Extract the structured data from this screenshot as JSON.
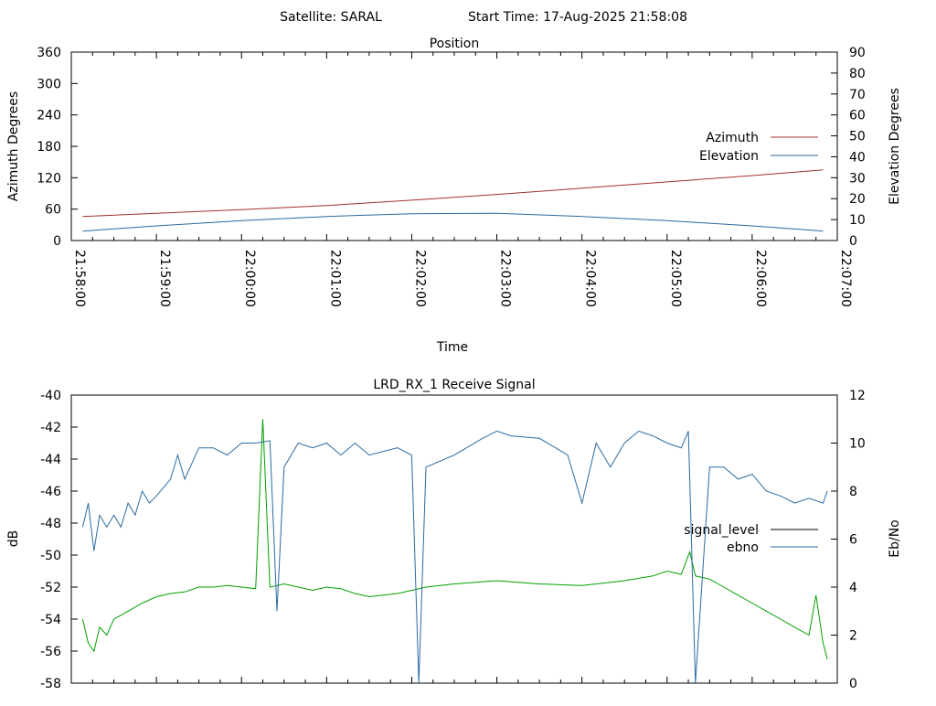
{
  "header": {
    "satellite": "Satellite: SARAL",
    "start_time": "Start Time: 17-Aug-2025 21:58:08"
  },
  "chart_data": [
    {
      "type": "line",
      "title": "Position",
      "xlabel": "Time",
      "ylabel": "Azimuth Degrees",
      "y2label": "Elevation Degrees",
      "x_ticks": [
        "21:58:00",
        "21:59:00",
        "22:00:00",
        "22:01:00",
        "22:02:00",
        "22:03:00",
        "22:04:00",
        "22:05:00",
        "22:06:00",
        "22:07:00"
      ],
      "xlim_seconds": [
        0,
        540
      ],
      "ylim": [
        0,
        360
      ],
      "y2lim": [
        0,
        90
      ],
      "y_ticks": [
        "0",
        "60",
        "120",
        "180",
        "240",
        "300",
        "360"
      ],
      "y2_ticks": [
        "0",
        "10",
        "20",
        "30",
        "40",
        "50",
        "60",
        "70",
        "80",
        "90"
      ],
      "legend": "right",
      "series": [
        {
          "name": "Azimuth",
          "axis": "y",
          "color": "#a0302c",
          "x": [
            8,
            60,
            120,
            180,
            240,
            300,
            360,
            420,
            480,
            530
          ],
          "y": [
            46,
            52,
            59,
            67,
            77,
            88,
            100,
            112,
            124,
            135
          ]
        },
        {
          "name": "Elevation",
          "axis": "y2",
          "color": "#2c6aa0",
          "x": [
            8,
            60,
            120,
            180,
            240,
            300,
            360,
            420,
            480,
            530
          ],
          "y": [
            4.5,
            7.0,
            9.5,
            11.5,
            12.8,
            13.0,
            11.5,
            9.5,
            7.0,
            4.5
          ]
        }
      ]
    },
    {
      "type": "line",
      "title": "LRD_RX_1 Receive Signal",
      "ylabel": "dB",
      "y2label": "Eb/No",
      "xlim_seconds": [
        0,
        540
      ],
      "ylim": [
        -58,
        -40
      ],
      "y2lim": [
        0,
        12
      ],
      "y_ticks": [
        "-40",
        "-42",
        "-44",
        "-46",
        "-48",
        "-50",
        "-52",
        "-54",
        "-56",
        "-58"
      ],
      "y2_ticks": [
        "0",
        "2",
        "4",
        "6",
        "8",
        "10",
        "12"
      ],
      "legend": "right",
      "series": [
        {
          "name": "signal_level",
          "axis": "y",
          "color": "#00a000",
          "x": [
            8,
            12,
            16,
            20,
            25,
            30,
            40,
            50,
            60,
            70,
            80,
            90,
            100,
            110,
            120,
            130,
            135,
            140,
            150,
            160,
            170,
            180,
            190,
            200,
            210,
            230,
            250,
            270,
            300,
            330,
            360,
            390,
            410,
            420,
            430,
            436,
            440,
            450,
            460,
            470,
            480,
            490,
            500,
            510,
            520,
            525,
            530,
            533
          ],
          "y": [
            -54.0,
            -55.5,
            -56.0,
            -54.5,
            -55.0,
            -54.0,
            -53.5,
            -53.0,
            -52.6,
            -52.4,
            -52.3,
            -52.0,
            -52.0,
            -51.9,
            -52.0,
            -52.1,
            -41.5,
            -52.0,
            -51.8,
            -52.0,
            -52.2,
            -52.0,
            -52.1,
            -52.4,
            -52.6,
            -52.4,
            -52.0,
            -51.8,
            -51.6,
            -51.8,
            -51.9,
            -51.6,
            -51.3,
            -51.0,
            -51.2,
            -49.8,
            -51.3,
            -51.5,
            -52.0,
            -52.5,
            -53.0,
            -53.5,
            -54.0,
            -54.5,
            -55.0,
            -52.5,
            -55.5,
            -56.5
          ]
        },
        {
          "name": "ebno",
          "axis": "y2",
          "color": "#2c6aa0",
          "x": [
            8,
            12,
            16,
            20,
            25,
            30,
            35,
            40,
            45,
            50,
            55,
            60,
            70,
            75,
            80,
            90,
            100,
            110,
            120,
            130,
            140,
            145,
            150,
            160,
            170,
            180,
            190,
            200,
            210,
            230,
            240,
            245,
            250,
            270,
            290,
            300,
            310,
            330,
            350,
            360,
            370,
            380,
            390,
            400,
            410,
            420,
            430,
            435,
            440,
            450,
            460,
            470,
            480,
            490,
            500,
            510,
            520,
            530,
            533
          ],
          "y": [
            6.5,
            7.5,
            5.5,
            7.0,
            6.5,
            7.0,
            6.5,
            7.5,
            7.0,
            8.0,
            7.5,
            7.8,
            8.5,
            9.5,
            8.5,
            9.8,
            9.8,
            9.5,
            10.0,
            10.0,
            10.1,
            3.0,
            9.0,
            10.0,
            9.8,
            10.0,
            9.5,
            10.0,
            9.5,
            9.8,
            9.5,
            0.0,
            9.0,
            9.5,
            10.2,
            10.5,
            10.3,
            10.2,
            9.5,
            7.5,
            10.0,
            9.0,
            10.0,
            10.5,
            10.3,
            10.0,
            9.8,
            10.5,
            0.0,
            9.0,
            9.0,
            8.5,
            8.7,
            8.0,
            7.8,
            7.5,
            7.7,
            7.5,
            8.0
          ]
        }
      ]
    }
  ]
}
